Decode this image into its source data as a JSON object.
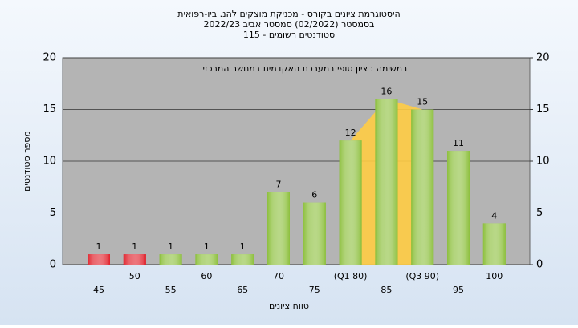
{
  "chart_data": {
    "type": "bar",
    "title": "היסטוגרמת ציונים בקורס - מכניקת מוצקים להנ. ביו-רפואית",
    "subtitle": [
      "בסמסטר  (02/2022)  סמסטר אביב 2022/23",
      "סטודנטים רשומים - 115"
    ],
    "annotation": "במשימה : ציון סופי במערכת האקדמית במחשב המרכזי",
    "x_label": "טווח ציונים",
    "y_label": "מספר סטודנטים",
    "categories": [
      "45",
      "50",
      "55",
      "60",
      "65",
      "70",
      "75",
      "(Q1 80)",
      "85",
      "(Q3 90)",
      "95",
      "100"
    ],
    "values": [
      1,
      1,
      1,
      1,
      1,
      7,
      6,
      12,
      16,
      15,
      11,
      4
    ],
    "colors": [
      "#e0202a",
      "#e0202a",
      "#8cbf3c",
      "#8cbf3c",
      "#8cbf3c",
      "#8cbf3c",
      "#8cbf3c",
      "#8cbf3c",
      "#8cbf3c",
      "#8cbf3c",
      "#8cbf3c",
      "#8cbf3c"
    ],
    "ylim": [
      0,
      20
    ],
    "yticks": [
      0,
      5,
      10,
      15,
      20
    ],
    "y2lim": [
      0,
      20
    ],
    "y2ticks": [
      0,
      5,
      10,
      15,
      20
    ],
    "grid": true
  }
}
